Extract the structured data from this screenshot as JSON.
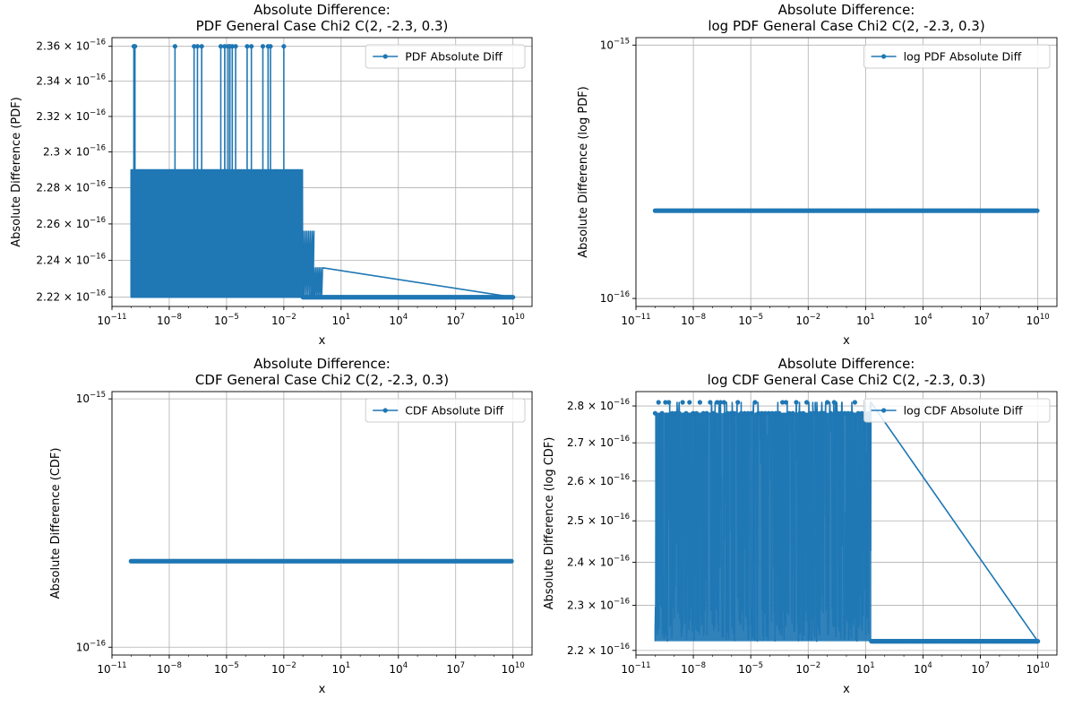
{
  "chart_data": [
    {
      "type": "line",
      "title": [
        "Absolute Difference:",
        "PDF General Case Chi2 C(2, -2.3, 0.3)"
      ],
      "xlabel": "x",
      "ylabel": "Absolute Difference (PDF)",
      "xscale": "log",
      "yscale": "log",
      "xlim": [
        1e-11,
        100000000000.0
      ],
      "ylim": [
        2.215e-16,
        2.365e-16
      ],
      "xticks": [
        {
          "value": 1e-11,
          "base": "10",
          "exp": "−11"
        },
        {
          "value": 1e-08,
          "base": "10",
          "exp": "−8"
        },
        {
          "value": 1e-05,
          "base": "10",
          "exp": "−5"
        },
        {
          "value": 0.01,
          "base": "10",
          "exp": "−2"
        },
        {
          "value": 10.0,
          "base": "10",
          "exp": "1"
        },
        {
          "value": 10000.0,
          "base": "10",
          "exp": "4"
        },
        {
          "value": 10000000.0,
          "base": "10",
          "exp": "7"
        },
        {
          "value": 10000000000.0,
          "base": "10",
          "exp": "10"
        }
      ],
      "yticks": [
        {
          "value": 2.22e-16,
          "mant": "2.22",
          "exp": "−16"
        },
        {
          "value": 2.24e-16,
          "mant": "2.24",
          "exp": "−16"
        },
        {
          "value": 2.26e-16,
          "mant": "2.26",
          "exp": "−16"
        },
        {
          "value": 2.28e-16,
          "mant": "2.28",
          "exp": "−16"
        },
        {
          "value": 2.3e-16,
          "mant": "2.3",
          "exp": "−16"
        },
        {
          "value": 2.32e-16,
          "mant": "2.32",
          "exp": "−16"
        },
        {
          "value": 2.34e-16,
          "mant": "2.34",
          "exp": "−16"
        },
        {
          "value": 2.36e-16,
          "mant": "2.36",
          "exp": "−16"
        }
      ],
      "grid": true,
      "legend": "upper right",
      "series": [
        {
          "name": "PDF Absolute Diff",
          "color": "#1f77b4",
          "x_range": [
            1e-10,
            10000000000.0
          ],
          "noise_band": {
            "x_end": 0.1,
            "values": [
              2.22e-16,
              2.29e-16
            ]
          },
          "noise_tail": [
            {
              "x": 0.178,
              "values": [
                2.22e-16,
                2.256e-16
              ]
            },
            {
              "x": 0.5,
              "values": [
                2.22e-16,
                2.236e-16
              ]
            }
          ],
          "baseline": 2.22e-16,
          "spikes": {
            "value": 2.36e-16,
            "x": [
              1.4e-10,
              1.6e-10,
              2e-08,
              2e-07,
              3e-07,
              5e-07,
              5e-06,
              8e-06,
              1.2e-05,
              1.5e-05,
              2e-05,
              3e-05,
              0.00012,
              0.0002,
              0.0008,
              0.0015,
              0.002,
              0.01
            ]
          }
        }
      ]
    },
    {
      "type": "line",
      "title": [
        "Absolute Difference:",
        "log PDF General Case Chi2 C(2, -2.3, 0.3)"
      ],
      "xlabel": "x",
      "ylabel": "Absolute Difference (log PDF)",
      "xscale": "log",
      "yscale": "log",
      "xlim": [
        1e-11,
        100000000000.0
      ],
      "ylim": [
        9.3e-17,
        1.07e-15
      ],
      "xticks": [
        {
          "value": 1e-11,
          "base": "10",
          "exp": "−11"
        },
        {
          "value": 1e-08,
          "base": "10",
          "exp": "−8"
        },
        {
          "value": 1e-05,
          "base": "10",
          "exp": "−5"
        },
        {
          "value": 0.01,
          "base": "10",
          "exp": "−2"
        },
        {
          "value": 10.0,
          "base": "10",
          "exp": "1"
        },
        {
          "value": 10000.0,
          "base": "10",
          "exp": "4"
        },
        {
          "value": 10000000.0,
          "base": "10",
          "exp": "7"
        },
        {
          "value": 10000000000.0,
          "base": "10",
          "exp": "10"
        }
      ],
      "yticks": [
        {
          "value": 1e-16,
          "mant": "10",
          "exp": "−16",
          "pow": true
        },
        {
          "value": 1e-15,
          "mant": "10",
          "exp": "−15",
          "pow": true
        }
      ],
      "grid": true,
      "legend": "upper right",
      "series": [
        {
          "name": "log PDF Absolute Diff",
          "color": "#1f77b4",
          "x_range": [
            1e-10,
            10000000000.0
          ],
          "baseline": 2.22e-16
        }
      ]
    },
    {
      "type": "line",
      "title": [
        "Absolute Difference:",
        "CDF General Case Chi2 C(2, -2.3, 0.3)"
      ],
      "xlabel": "x",
      "ylabel": "Absolute Difference (CDF)",
      "xscale": "log",
      "yscale": "log",
      "xlim": [
        1e-11,
        100000000000.0
      ],
      "ylim": [
        9.3e-17,
        1.07e-15
      ],
      "xticks": [
        {
          "value": 1e-11,
          "base": "10",
          "exp": "−11"
        },
        {
          "value": 1e-08,
          "base": "10",
          "exp": "−8"
        },
        {
          "value": 1e-05,
          "base": "10",
          "exp": "−5"
        },
        {
          "value": 0.01,
          "base": "10",
          "exp": "−2"
        },
        {
          "value": 10.0,
          "base": "10",
          "exp": "1"
        },
        {
          "value": 10000.0,
          "base": "10",
          "exp": "4"
        },
        {
          "value": 10000000.0,
          "base": "10",
          "exp": "7"
        },
        {
          "value": 10000000000.0,
          "base": "10",
          "exp": "10"
        }
      ],
      "yticks": [
        {
          "value": 1e-16,
          "mant": "10",
          "exp": "−16",
          "pow": true
        },
        {
          "value": 1e-15,
          "mant": "10",
          "exp": "−15",
          "pow": true
        }
      ],
      "grid": true,
      "legend": "upper right",
      "series": [
        {
          "name": "CDF Absolute Diff",
          "color": "#1f77b4",
          "x_range": [
            1e-10,
            10000000000.0
          ],
          "baseline": 2.22e-16
        }
      ]
    },
    {
      "type": "line",
      "title": [
        "Absolute Difference:",
        "log CDF General Case Chi2 C(2, -2.3, 0.3)"
      ],
      "xlabel": "x",
      "ylabel": "Absolute Difference (log CDF)",
      "xscale": "log",
      "yscale": "log",
      "xlim": [
        1e-11,
        100000000000.0
      ],
      "ylim": [
        2.19e-16,
        2.84e-16
      ],
      "xticks": [
        {
          "value": 1e-11,
          "base": "10",
          "exp": "−11"
        },
        {
          "value": 1e-08,
          "base": "10",
          "exp": "−8"
        },
        {
          "value": 1e-05,
          "base": "10",
          "exp": "−5"
        },
        {
          "value": 0.01,
          "base": "10",
          "exp": "−2"
        },
        {
          "value": 10.0,
          "base": "10",
          "exp": "1"
        },
        {
          "value": 10000.0,
          "base": "10",
          "exp": "4"
        },
        {
          "value": 10000000.0,
          "base": "10",
          "exp": "7"
        },
        {
          "value": 10000000000.0,
          "base": "10",
          "exp": "10"
        }
      ],
      "yticks": [
        {
          "value": 2.2e-16,
          "mant": "2.2",
          "exp": "−16"
        },
        {
          "value": 2.3e-16,
          "mant": "2.3",
          "exp": "−16"
        },
        {
          "value": 2.4e-16,
          "mant": "2.4",
          "exp": "−16"
        },
        {
          "value": 2.5e-16,
          "mant": "2.5",
          "exp": "−16"
        },
        {
          "value": 2.6e-16,
          "mant": "2.6",
          "exp": "−16"
        },
        {
          "value": 2.7e-16,
          "mant": "2.7",
          "exp": "−16"
        },
        {
          "value": 2.8e-16,
          "mant": "2.8",
          "exp": "−16"
        }
      ],
      "grid": true,
      "legend": "upper right",
      "series": [
        {
          "name": "log CDF Absolute Diff",
          "color": "#1f77b4",
          "x_range": [
            1e-10,
            10000000000.0
          ],
          "noise_band": {
            "x_end": 20,
            "values": [
              2.22e-16,
              2.78e-16
            ]
          },
          "noise_top": 2.81e-16,
          "baseline": 2.22e-16
        }
      ]
    }
  ]
}
